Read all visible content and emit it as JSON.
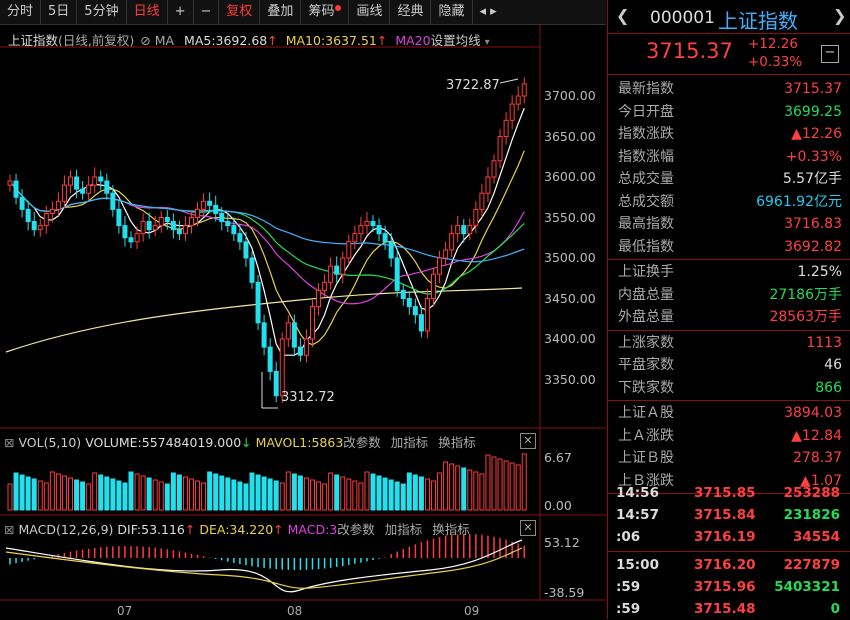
{
  "toolbar": {
    "items": [
      "分时",
      "5日",
      "5分钟",
      "日线",
      "+",
      "−",
      "复权",
      "叠加",
      "筹码",
      "画线",
      "经典",
      "隐藏"
    ],
    "active_index": 3,
    "fuquan_index": 6,
    "chips_index": 8,
    "arrows": "◂ ▸"
  },
  "main_chart": {
    "title": "上证指数",
    "subtitle": "(日线,前复权)",
    "ma_label": "MA",
    "ma5": "MA5:3692.68",
    "ma10": "MA10:3637.51",
    "ma20": "MA20",
    "settings": "设置均线",
    "high_label": "3722.87",
    "low_label": "3312.72",
    "y_ticks": [
      "3700.00",
      "3650.00",
      "3600.00",
      "3550.00",
      "3500.00",
      "3450.00",
      "3400.00",
      "3350.00"
    ]
  },
  "volume": {
    "label": "VOL(5,10)",
    "volume": "VOLUME:557484019.000",
    "mavol1": "MAVOL1:5863",
    "params": "改参数",
    "add": "加指标",
    "switch": "换指标",
    "y_ticks": [
      "6.67",
      "0.00"
    ]
  },
  "macd": {
    "label": "MACD(12,26,9)",
    "dif": "DIF:53.116",
    "dea": "DEA:34.220",
    "macd": "MACD:3",
    "params": "改参数",
    "add": "加指标",
    "switch": "换指标",
    "y_ticks": [
      "53.12",
      "-38.59"
    ]
  },
  "x_axis": [
    "07",
    "08",
    "09"
  ],
  "quote": {
    "code": "000001",
    "name": "上证指数",
    "price": "3715.37",
    "change": "+12.26",
    "change_pct": "+0.33%",
    "stats": [
      {
        "k": "最新指数",
        "v": "3715.37",
        "c": "red"
      },
      {
        "k": "今日开盘",
        "v": "3699.25",
        "c": "green"
      },
      {
        "k": "指数涨跌",
        "v": "▲12.26",
        "c": "red"
      },
      {
        "k": "指数涨幅",
        "v": "+0.33%",
        "c": "red"
      },
      {
        "k": "总成交量",
        "v": "5.57亿手",
        "c": "white"
      },
      {
        "k": "总成交额",
        "v": "6961.92亿元",
        "c": "cyan"
      },
      {
        "k": "最高指数",
        "v": "3716.83",
        "c": "red"
      },
      {
        "k": "最低指数",
        "v": "3692.82",
        "c": "red"
      }
    ],
    "stats2": [
      {
        "k": "上证换手",
        "v": "1.25%",
        "c": "white"
      },
      {
        "k": "内盘总量",
        "v": "27186万手",
        "c": "green"
      },
      {
        "k": "外盘总量",
        "v": "28563万手",
        "c": "red"
      }
    ],
    "stats3": [
      {
        "k": "上涨家数",
        "v": "1113",
        "c": "red"
      },
      {
        "k": "平盘家数",
        "v": "46",
        "c": "white"
      },
      {
        "k": "下跌家数",
        "v": "866",
        "c": "green"
      }
    ],
    "stats4": [
      {
        "k": "上证Ａ股",
        "v": "3894.03",
        "c": "red"
      },
      {
        "k": "上Ａ涨跌",
        "v": "▲12.84",
        "c": "red"
      },
      {
        "k": "上证Ｂ股",
        "v": "278.37",
        "c": "red"
      },
      {
        "k": "上Ｂ涨跌",
        "v": "▲1.07",
        "c": "red"
      }
    ],
    "ticks": [
      {
        "t": "14:56",
        "p": "3715.85",
        "vol": "253288",
        "vc": "red"
      },
      {
        "t": "14:57",
        "p": "3715.84",
        "vol": "231826",
        "vc": "green"
      },
      {
        "t": ":06",
        "p": "3716.19",
        "vol": "34554",
        "vc": "red"
      },
      {
        "t": "15:00",
        "p": "3716.20",
        "vol": "227879",
        "vc": "red"
      },
      {
        "t": ":59",
        "p": "3715.96",
        "vol": "5403321",
        "vc": "green"
      },
      {
        "t": ":59",
        "p": "3715.48",
        "vol": "0",
        "vc": "green"
      }
    ]
  }
}
